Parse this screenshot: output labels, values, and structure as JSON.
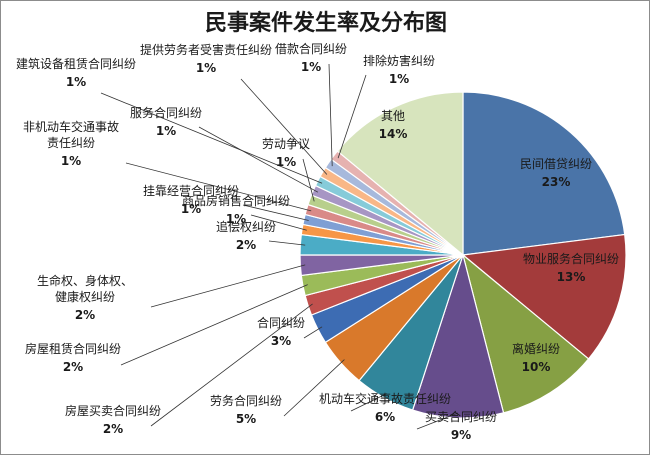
{
  "chart_data": {
    "type": "pie",
    "title": "民事案件发生率及分布图",
    "slices": [
      {
        "label": "民间借贷纠纷",
        "pct_label": "23%",
        "value": 23,
        "color": "#4a74a8"
      },
      {
        "label": "物业服务合同纠纷",
        "pct_label": "13%",
        "value": 13,
        "color": "#a33b3b"
      },
      {
        "label": "离婚纠纷",
        "pct_label": "10%",
        "value": 10,
        "color": "#86a044"
      },
      {
        "label": "买卖合同纠纷",
        "pct_label": "9%",
        "value": 9,
        "color": "#664d8c"
      },
      {
        "label": "机动车交通事故责任纠纷",
        "pct_label": "6%",
        "value": 6,
        "color": "#31869b"
      },
      {
        "label": "劳务合同纠纷",
        "pct_label": "5%",
        "value": 5,
        "color": "#d9792b"
      },
      {
        "label": "合同纠纷",
        "pct_label": "3%",
        "value": 3,
        "color": "#3d6cb3"
      },
      {
        "label": "房屋买卖合同纠纷",
        "pct_label": "2%",
        "value": 2,
        "color": "#c0504d"
      },
      {
        "label": "房屋租赁合同纠纷",
        "pct_label": "2%",
        "value": 2,
        "color": "#9bbb59"
      },
      {
        "label": "生命权、身体权、健康权纠纷",
        "pct_label": "2%",
        "value": 2,
        "color": "#8064a2"
      },
      {
        "label": "追偿权纠纷",
        "pct_label": "2%",
        "value": 2,
        "color": "#4bacc6"
      },
      {
        "label": "商品房销售合同纠纷",
        "pct_label": "1%",
        "value": 1,
        "color": "#f79646"
      },
      {
        "label": "挂靠经营合同纠纷",
        "pct_label": "1%",
        "value": 1,
        "color": "#7f9fd4"
      },
      {
        "label": "非机动车交通事故责任纠纷",
        "pct_label": "1%",
        "value": 1,
        "color": "#d98a88"
      },
      {
        "label": "劳动争议",
        "pct_label": "1%",
        "value": 1,
        "color": "#b8cf8c"
      },
      {
        "label": "服务合同纠纷",
        "pct_label": "1%",
        "value": 1,
        "color": "#a796c4"
      },
      {
        "label": "建筑设备租赁合同纠纷",
        "pct_label": "1%",
        "value": 1,
        "color": "#86cbd9"
      },
      {
        "label": "提供劳务者受害责任纠纷",
        "pct_label": "1%",
        "value": 1,
        "color": "#f9b787"
      },
      {
        "label": "借款合同纠纷",
        "pct_label": "1%",
        "value": 1,
        "color": "#a7b9dc"
      },
      {
        "label": "排除妨害纠纷",
        "pct_label": "1%",
        "value": 1,
        "color": "#e6b2b0"
      },
      {
        "label": "其他",
        "pct_label": "14%",
        "value": 14,
        "color": "#d7e4bd"
      }
    ]
  }
}
